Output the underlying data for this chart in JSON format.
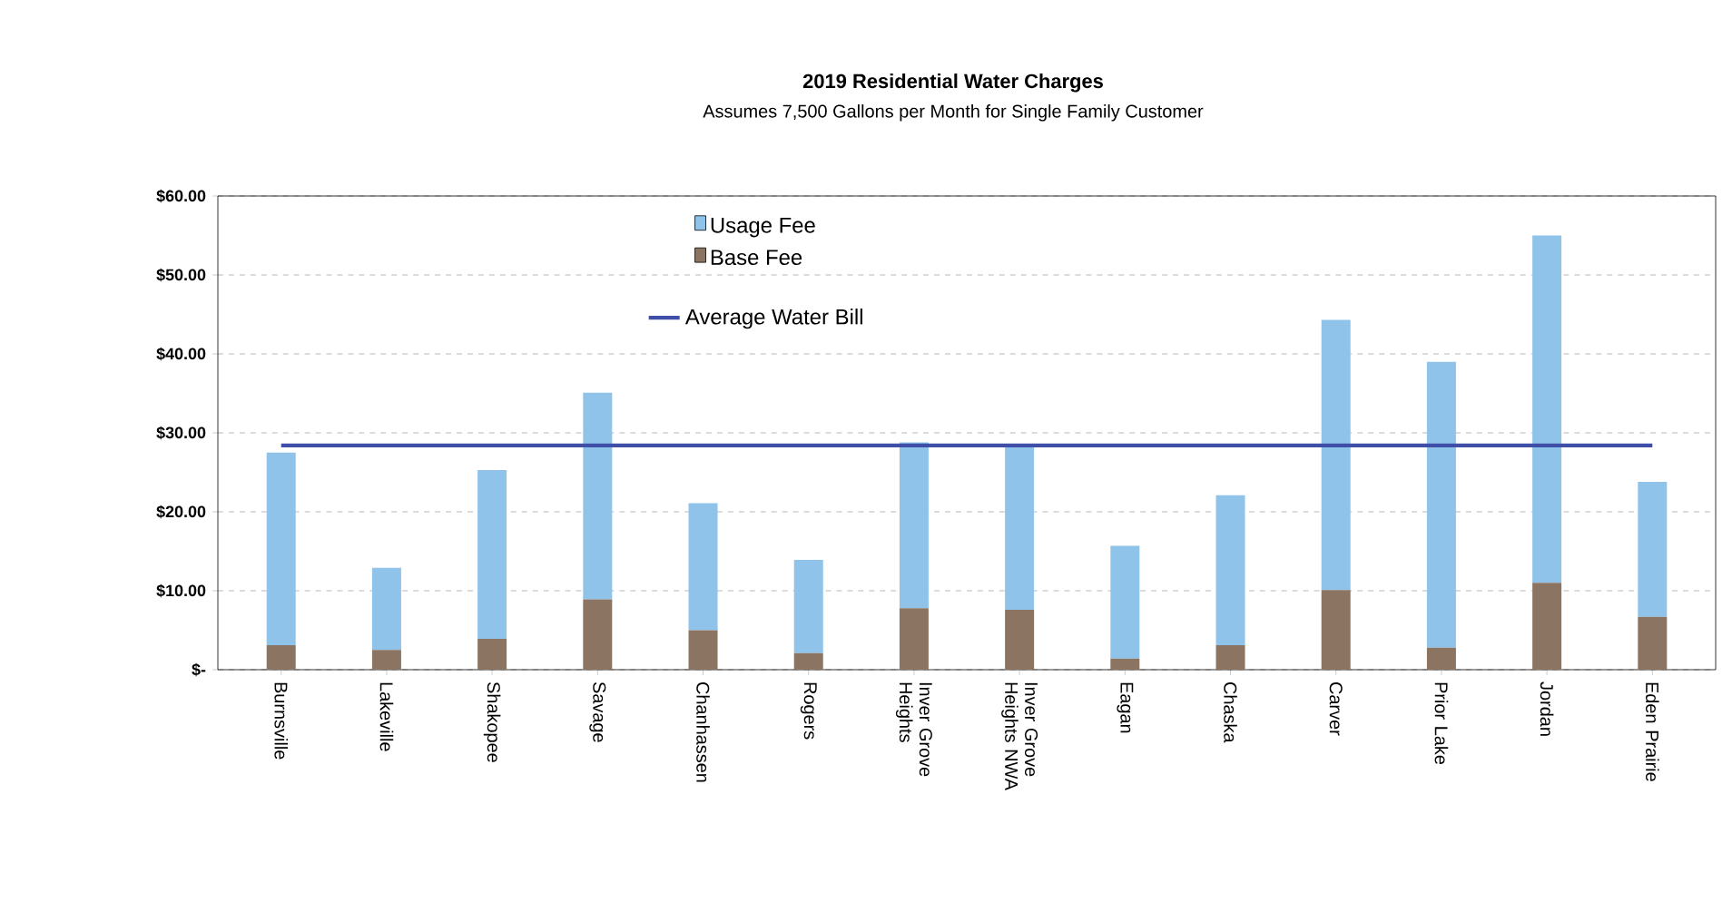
{
  "chart_data": {
    "type": "bar",
    "title": "2019 Residential Water Charges",
    "subtitle": "Assumes 7,500 Gallons per Month for Single Family Customer",
    "categories": [
      "Burnsville",
      "Lakeville",
      "Shakopee",
      "Savage",
      "Chanhassen",
      "Rogers",
      "Inver Grove Heights",
      "Inver Grove Heights NWA",
      "Eagan",
      "Chaska",
      "Carver",
      "Prior Lake",
      "Jordan",
      "Eden Prairie"
    ],
    "stacked": true,
    "series": [
      {
        "name": "Base Fee",
        "color": "#8b7562",
        "values": [
          3.1,
          2.5,
          3.9,
          8.9,
          5.0,
          2.1,
          7.8,
          7.6,
          1.4,
          3.1,
          10.1,
          2.8,
          11.0,
          6.7
        ]
      },
      {
        "name": "Usage Fee",
        "color": "#8fc3ea",
        "values": [
          24.4,
          10.4,
          21.4,
          26.2,
          16.1,
          11.8,
          21.0,
          20.8,
          14.3,
          19.0,
          34.2,
          36.2,
          44.0,
          17.1
        ]
      },
      {
        "name": "Average Water Bill",
        "type": "line",
        "color": "#3f4fa8",
        "values": [
          28.4,
          28.4,
          28.4,
          28.4,
          28.4,
          28.4,
          28.4,
          28.4,
          28.4,
          28.4,
          28.4,
          28.4,
          28.4,
          28.4
        ]
      }
    ],
    "ylim": [
      0,
      60
    ],
    "yticks": [
      {
        "value": 0,
        "label": "$-"
      },
      {
        "value": 10,
        "label": "$10.00"
      },
      {
        "value": 20,
        "label": "$20.00"
      },
      {
        "value": 30,
        "label": "$30.00"
      },
      {
        "value": 40,
        "label": "$40.00"
      },
      {
        "value": 50,
        "label": "$50.00"
      },
      {
        "value": 60,
        "label": "$60.00"
      }
    ],
    "grid": "y",
    "legend": "top"
  }
}
